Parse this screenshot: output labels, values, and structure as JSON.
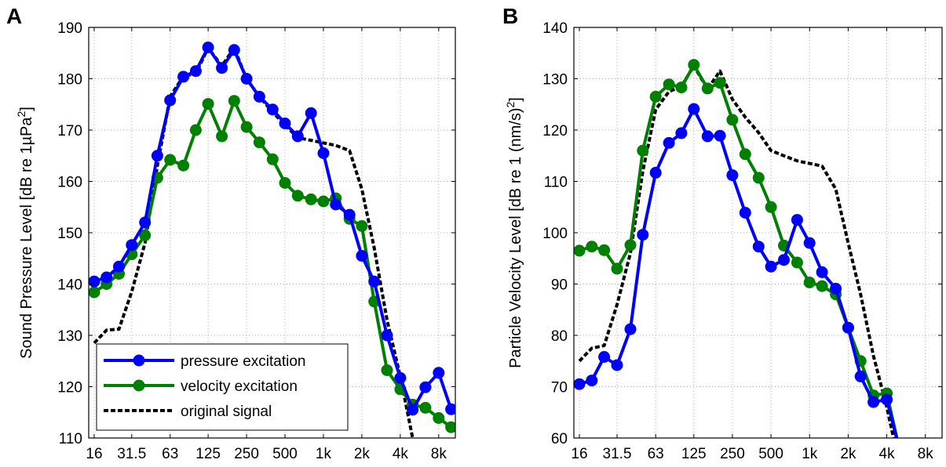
{
  "chart_data": [
    {
      "panel": "A",
      "type": "line",
      "ylabel_main": "Sound Pressure Level [dB re 1",
      "ylabel_unit": "µPa",
      "ylabel_sup": "2",
      "ylabel_end": "]",
      "ylim": [
        110,
        190
      ],
      "yticks": [
        110,
        120,
        130,
        140,
        150,
        160,
        170,
        180,
        190
      ],
      "xscale": "log",
      "xlim": [
        14.5,
        10800
      ],
      "xticks": [
        16,
        31.5,
        63,
        125,
        250,
        500,
        1000,
        2000,
        4000,
        8000
      ],
      "xtick_labels": [
        "16",
        "31.5",
        "63",
        "125",
        "250",
        "500",
        "1k",
        "2k",
        "4k",
        "8k"
      ],
      "grid": true,
      "legend": {
        "placement": "bottom-left",
        "entries": [
          "pressure excitation",
          "velocity excitation",
          "original signal"
        ]
      },
      "series": [
        {
          "name": "pressure excitation",
          "color": "#0000ff",
          "marker": "circle",
          "x": [
            16,
            20,
            25,
            31.5,
            40,
            50,
            63,
            80,
            100,
            125,
            160,
            200,
            250,
            315,
            400,
            500,
            630,
            800,
            1000,
            1250,
            1600,
            2000,
            2500,
            3150,
            4000,
            5000,
            6300,
            8000,
            10000
          ],
          "y": [
            140.5,
            141.3,
            143.4,
            147.6,
            152.0,
            165.0,
            175.8,
            180.4,
            181.5,
            186.1,
            182.1,
            185.6,
            180.0,
            176.5,
            174.0,
            171.3,
            168.8,
            173.3,
            165.5,
            155.5,
            153.5,
            145.5,
            140.5,
            130.0,
            121.7,
            115.5,
            119.9,
            122.7,
            115.6
          ]
        },
        {
          "name": "velocity excitation",
          "color": "#008000",
          "marker": "circle",
          "x": [
            16,
            20,
            25,
            31.5,
            40,
            50,
            63,
            80,
            100,
            125,
            160,
            200,
            250,
            315,
            400,
            500,
            630,
            800,
            1000,
            1250,
            1600,
            2000,
            2500,
            3150,
            4000,
            5000,
            6300,
            8000,
            10000
          ],
          "y": [
            138.4,
            140.0,
            142.0,
            145.8,
            149.5,
            160.7,
            164.2,
            163.1,
            170.0,
            175.1,
            168.8,
            175.7,
            170.6,
            167.6,
            164.3,
            159.7,
            157.2,
            156.5,
            156.1,
            156.7,
            152.7,
            151.3,
            136.6,
            123.2,
            119.5,
            116.5,
            115.9,
            113.9,
            112.1
          ]
        },
        {
          "name": "original signal",
          "color": "#000000",
          "style": "dashed",
          "x": [
            16,
            20,
            25,
            31.5,
            40,
            50,
            63,
            80,
            100,
            125,
            160,
            200,
            250,
            315,
            400,
            500,
            630,
            800,
            1000,
            1250,
            1600,
            2000,
            2500,
            3150,
            4000,
            5000
          ],
          "y": [
            128.5,
            131.0,
            131.2,
            138.5,
            148.0,
            163.0,
            176.5,
            180.5,
            181.0,
            186.0,
            182.5,
            186.0,
            180.0,
            176.5,
            173.5,
            171.0,
            168.5,
            168.0,
            167.5,
            167.0,
            166.0,
            158.5,
            147.0,
            133.0,
            122.0,
            110.0
          ]
        }
      ]
    },
    {
      "panel": "B",
      "type": "line",
      "ylabel_main": "Particle Velocity Level [dB re 1 (nm/s)",
      "ylabel_sup": "2",
      "ylabel_end": "]",
      "ylim": [
        60,
        140
      ],
      "yticks": [
        60,
        70,
        80,
        90,
        100,
        110,
        120,
        130,
        140
      ],
      "xscale": "log",
      "xlim": [
        14.5,
        10800
      ],
      "xticks": [
        16,
        31.5,
        63,
        125,
        250,
        500,
        1000,
        2000,
        4000,
        8000
      ],
      "xtick_labels": [
        "16",
        "31.5",
        "63",
        "125",
        "250",
        "500",
        "1k",
        "2k",
        "4k",
        "8k"
      ],
      "grid": true,
      "series": [
        {
          "name": "pressure excitation",
          "color": "#0000ff",
          "marker": "circle",
          "x": [
            16,
            20,
            25,
            31.5,
            40,
            50,
            63,
            80,
            100,
            125,
            160,
            200,
            250,
            315,
            400,
            500,
            630,
            800,
            1000,
            1250,
            1600,
            2000,
            2500,
            3150,
            4000,
            5000
          ],
          "y": [
            70.5,
            71.2,
            75.8,
            74.2,
            81.2,
            99.6,
            111.7,
            117.5,
            119.4,
            124.1,
            118.8,
            118.9,
            111.2,
            103.9,
            97.3,
            93.4,
            94.7,
            102.5,
            98.0,
            92.3,
            89.1,
            81.5,
            72.0,
            67.0,
            67.5,
            58.0
          ]
        },
        {
          "name": "velocity excitation",
          "color": "#008000",
          "marker": "circle",
          "x": [
            16,
            20,
            25,
            31.5,
            40,
            50,
            63,
            80,
            100,
            125,
            160,
            200,
            250,
            315,
            400,
            500,
            630,
            800,
            1000,
            1250,
            1600,
            2000,
            2500,
            3150,
            4000,
            5000
          ],
          "y": [
            96.5,
            97.3,
            96.6,
            93.0,
            97.6,
            116.0,
            126.5,
            128.9,
            128.3,
            132.7,
            128.1,
            129.2,
            122.0,
            115.3,
            110.7,
            105.0,
            97.5,
            94.2,
            90.3,
            89.6,
            88.0,
            81.5,
            75.0,
            68.3,
            68.7,
            58.0
          ]
        },
        {
          "name": "original signal",
          "color": "#000000",
          "style": "dashed",
          "x": [
            16,
            20,
            25,
            31.5,
            40,
            50,
            63,
            80,
            100,
            125,
            160,
            200,
            250,
            315,
            400,
            500,
            630,
            800,
            1000,
            1250,
            1600,
            2000,
            2500,
            3150,
            4000,
            5000
          ],
          "y": [
            75.0,
            77.5,
            78.0,
            86.0,
            96.0,
            112.0,
            124.0,
            127.5,
            128.5,
            132.5,
            128.0,
            131.5,
            126.0,
            122.5,
            119.5,
            116.0,
            115.0,
            114.0,
            113.5,
            113.0,
            108.5,
            98.0,
            88.0,
            76.0,
            66.0,
            55.0
          ]
        }
      ]
    }
  ]
}
